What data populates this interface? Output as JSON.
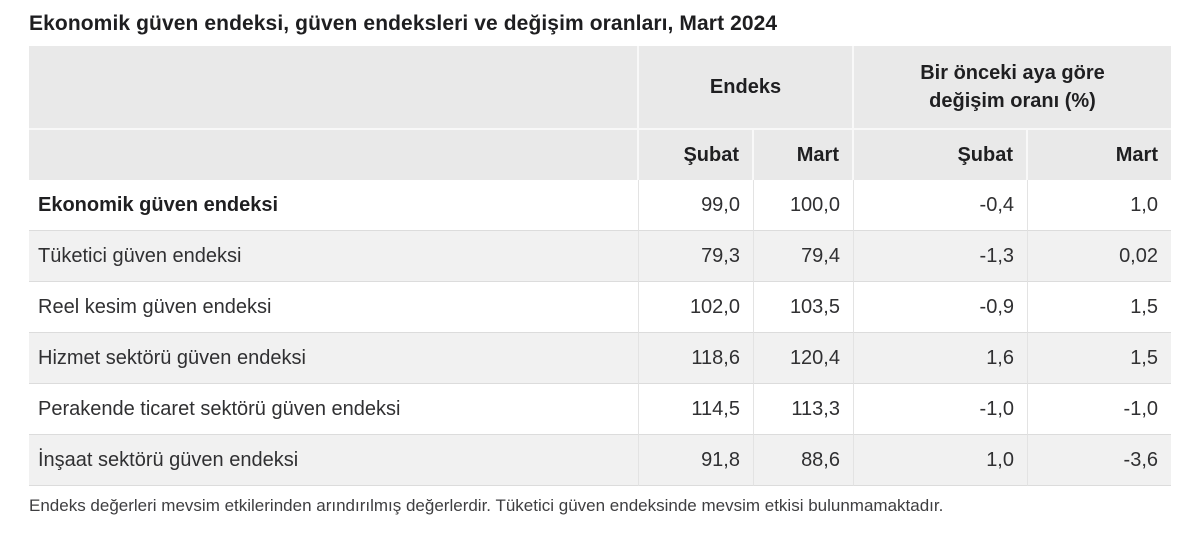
{
  "title": "Ekonomik güven endeksi, güven endeksleri ve değişim oranları, Mart 2024",
  "table": {
    "group_headers": {
      "endeks": "Endeks",
      "change_line1": "Bir önceki aya göre",
      "change_line2": "değişim oranı (%)"
    },
    "month_headers": [
      "Şubat",
      "Mart",
      "Şubat",
      "Mart"
    ],
    "rows": [
      {
        "label": "Ekonomik güven endeksi",
        "values": [
          "99,0",
          "100,0",
          "-0,4",
          "1,0"
        ]
      },
      {
        "label": "Tüketici güven endeksi",
        "values": [
          "79,3",
          "79,4",
          "-1,3",
          "0,02"
        ]
      },
      {
        "label": "Reel kesim güven endeksi",
        "values": [
          "102,0",
          "103,5",
          "-0,9",
          "1,5"
        ]
      },
      {
        "label": "Hizmet sektörü güven endeksi",
        "values": [
          "118,6",
          "120,4",
          "1,6",
          "1,5"
        ]
      },
      {
        "label": "Perakende ticaret sektörü güven endeksi",
        "values": [
          "114,5",
          "113,3",
          "-1,0",
          "-1,0"
        ]
      },
      {
        "label": "İnşaat sektörü güven endeksi",
        "values": [
          "91,8",
          "88,6",
          "1,0",
          "-3,6"
        ]
      }
    ]
  },
  "footnote": "Endeks değerleri mevsim etkilerinden arındırılmış değerlerdir. Tüketici güven endeksinde mevsim etkisi bulunmamaktadır.",
  "colors": {
    "header_bg": "#e9e9e9",
    "stripe_bg": "#f1f1f1",
    "header_divider": "#f8f8f8",
    "row_border": "#dcdcdc",
    "col_border": "#e3e3e3"
  },
  "chart_data": {
    "type": "table",
    "title": "Ekonomik güven endeksi, güven endeksleri ve değişim oranları, Mart 2024",
    "column_groups": [
      "Endeks",
      "Bir önceki aya göre değişim oranı (%)"
    ],
    "columns": [
      "Endeks — Şubat",
      "Endeks — Mart",
      "Değişim oranı (%) — Şubat",
      "Değişim oranı (%) — Mart"
    ],
    "rows": [
      {
        "label": "Ekonomik güven endeksi",
        "values": [
          99.0,
          100.0,
          -0.4,
          1.0
        ]
      },
      {
        "label": "Tüketici güven endeksi",
        "values": [
          79.3,
          79.4,
          -1.3,
          0.02
        ]
      },
      {
        "label": "Reel kesim güven endeksi",
        "values": [
          102.0,
          103.5,
          -0.9,
          1.5
        ]
      },
      {
        "label": "Hizmet sektörü güven endeksi",
        "values": [
          118.6,
          120.4,
          1.6,
          1.5
        ]
      },
      {
        "label": "Perakende ticaret sektörü güven endeksi",
        "values": [
          114.5,
          113.3,
          -1.0,
          -1.0
        ]
      },
      {
        "label": "İnşaat sektörü güven endeksi",
        "values": [
          91.8,
          88.6,
          1.0,
          -3.6
        ]
      }
    ],
    "footnote": "Endeks değerleri mevsim etkilerinden arındırılmış değerlerdir. Tüketici güven endeksinde mevsim etkisi bulunmamaktadır."
  }
}
